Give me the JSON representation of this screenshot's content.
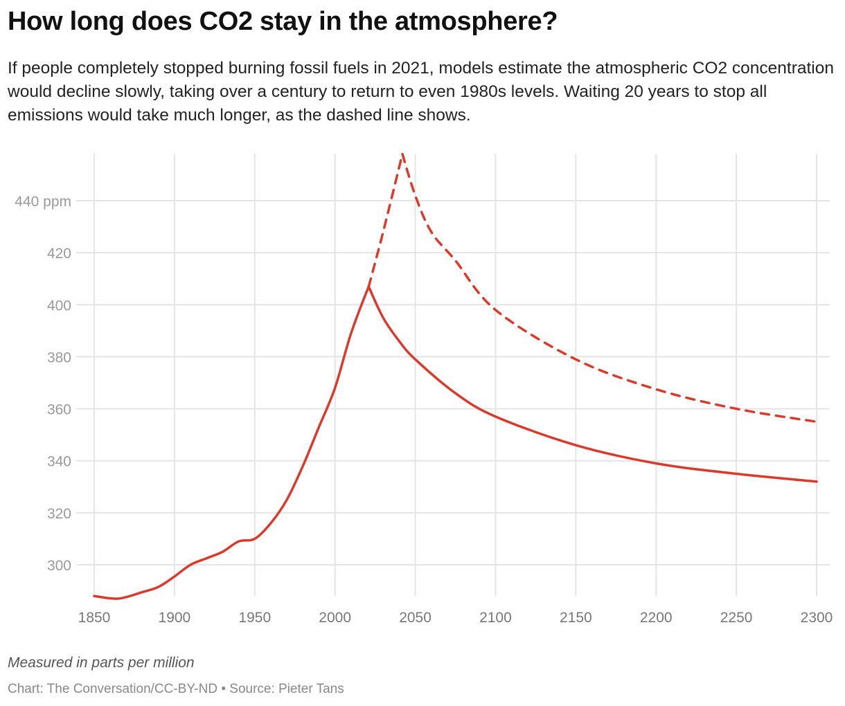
{
  "title": "How long does CO2 stay in the atmosphere?",
  "subtitle": "If people completely stopped burning fossil fuels in 2021, models estimate the atmospheric CO2 concentration would decline slowly, taking over a century to return to even 1980s levels. Waiting 20 years to stop all emissions would take much longer, as the dashed line shows.",
  "note": "Measured in parts per million",
  "source": "Chart: The Conversation/CC-BY-ND • Source: Pieter Tans",
  "chart_data": {
    "type": "line",
    "xlim": [
      1850,
      2300
    ],
    "ylim": [
      288,
      458
    ],
    "grid": true,
    "x_ticks": [
      1850,
      1900,
      1950,
      2000,
      2050,
      2100,
      2150,
      2200,
      2250,
      2300
    ],
    "y_ticks": [
      300,
      320,
      340,
      360,
      380,
      400,
      420,
      440
    ],
    "y_tick_labels": [
      "300",
      "320",
      "340",
      "360",
      "380",
      "400",
      "420",
      "440 ppm"
    ],
    "color": "#d93a2b",
    "series": [
      {
        "style": "solid",
        "x": [
          1850,
          1865,
          1880,
          1890,
          1900,
          1910,
          1920,
          1930,
          1940,
          1950,
          1960,
          1970,
          1980,
          1990,
          2000,
          2010,
          2021,
          2030,
          2040,
          2050,
          2075,
          2100,
          2150,
          2200,
          2250,
          2300
        ],
        "y": [
          288,
          287,
          289.5,
          291.5,
          295.5,
          300,
          302.5,
          305,
          309,
          310,
          316,
          325,
          338,
          353,
          368,
          389,
          407,
          395,
          386,
          379,
          366,
          357,
          346,
          339,
          335,
          332
        ]
      },
      {
        "style": "dashed",
        "x": [
          2021,
          2030,
          2042,
          2050,
          2060,
          2075,
          2100,
          2150,
          2200,
          2250,
          2300
        ],
        "y": [
          407,
          428,
          458,
          442,
          428,
          417,
          398,
          379,
          367.5,
          360,
          355
        ]
      }
    ]
  }
}
